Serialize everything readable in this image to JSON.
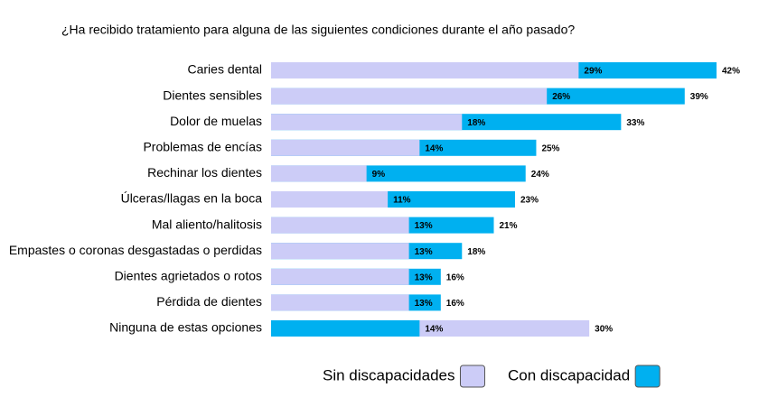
{
  "chart_data": {
    "type": "overlap-bar",
    "title": "¿Ha recibido tratamiento para alguna de las siguientes condiciones durante el año pasado?",
    "categories": [
      "Caries dental",
      "Dientes sensibles",
      "Dolor de muelas",
      "Problemas de encías",
      "Rechinar los dientes",
      "Úlceras/llagas en la boca",
      "Mal aliento/halitosis",
      "Empastes o coronas desgastadas o perdidas",
      "Dientes agrietados o rotos",
      "Pérdida de dientes",
      "Ninguna de estas opciones"
    ],
    "series": [
      {
        "name": "Sin discapacidades",
        "color": "#ccccf7",
        "values": [
          29,
          26,
          18,
          14,
          9,
          11,
          13,
          13,
          13,
          13,
          30
        ],
        "value_labels": [
          "29%",
          "26%",
          "18%",
          "14%",
          "9%",
          "11%",
          "13%",
          "13%",
          "13%",
          "13%",
          "30%"
        ]
      },
      {
        "name": "Con discapacidad",
        "color": "#00b0f0",
        "values": [
          42,
          39,
          33,
          25,
          24,
          23,
          21,
          18,
          16,
          16,
          14
        ],
        "value_labels": [
          "42%",
          "39%",
          "33%",
          "25%",
          "24%",
          "23%",
          "21%",
          "18%",
          "16%",
          "16%",
          "14%"
        ]
      }
    ]
  }
}
